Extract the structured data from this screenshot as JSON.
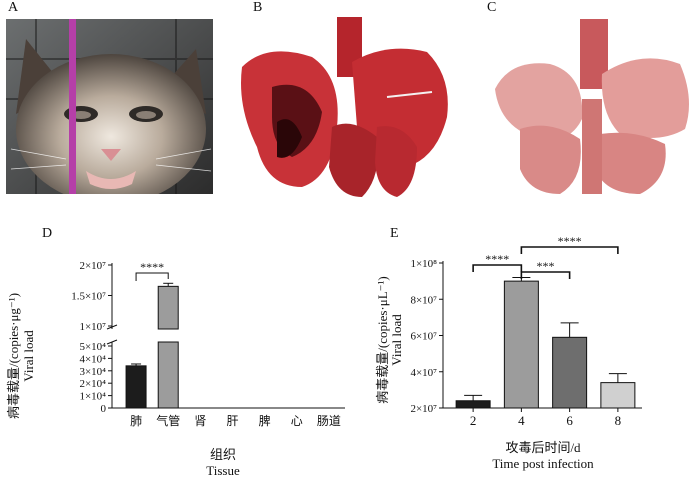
{
  "panels": {
    "A": "A",
    "B": "B",
    "C": "C",
    "D": "D",
    "E": "E"
  },
  "photos": {
    "A": "cat-face-photo",
    "B": "hemorrhagic-lung-photo",
    "C": "normal-lung-photo"
  },
  "chart_data": [
    {
      "panel": "D",
      "type": "bar",
      "categories": [
        "肺",
        "气管",
        "肾",
        "肝",
        "脾",
        "心",
        "肠道"
      ],
      "values": [
        34000,
        16500000,
        0,
        0,
        0,
        0,
        0
      ],
      "error": [
        1500,
        500000,
        0,
        0,
        0,
        0,
        0
      ],
      "bar_colors": [
        "#1c1c1c",
        "#9c9c9c"
      ],
      "ylabel_cn": "病毒载量/(copies·μg⁻¹)",
      "ylabel_en": "Viral load",
      "xlabel_cn": "组织",
      "xlabel_en": "Tissue",
      "axis_break": true,
      "ylim_lower": [
        0,
        50000
      ],
      "ylim_upper": [
        10000000,
        20000000
      ],
      "yticks_lower": [
        "0",
        "1×10⁴",
        "2×10⁴",
        "3×10⁴",
        "4×10⁴",
        "5×10⁴"
      ],
      "yticks_upper": [
        "1×10⁷",
        "1.5×10⁷",
        "2×10⁷"
      ],
      "significance": [
        {
          "from": "肺",
          "to": "气管",
          "label": "****"
        }
      ]
    },
    {
      "panel": "E",
      "type": "bar",
      "categories": [
        "2",
        "4",
        "6",
        "8"
      ],
      "values": [
        24000000,
        90000000,
        59000000,
        34000000
      ],
      "error": [
        3000000,
        2000000,
        8000000,
        5000000
      ],
      "bar_colors": [
        "#1c1c1c",
        "#9c9c9c",
        "#6e6e6e",
        "#d0d0d0"
      ],
      "ylabel_cn": "病毒载量/(copies·μL⁻¹)",
      "ylabel_en": "Viral load",
      "xlabel_cn": "攻毒后时间/d",
      "xlabel_en": "Time post infection",
      "ylim": [
        20000000,
        100000000
      ],
      "yticks": [
        "2×10⁷",
        "4×10⁷",
        "6×10⁷",
        "8×10⁷",
        "1×10⁸"
      ],
      "significance": [
        {
          "from": "2",
          "to": "4",
          "label": "****"
        },
        {
          "from": "4",
          "to": "6",
          "label": "***"
        },
        {
          "from": "4",
          "to": "8",
          "label": "****"
        }
      ]
    }
  ]
}
